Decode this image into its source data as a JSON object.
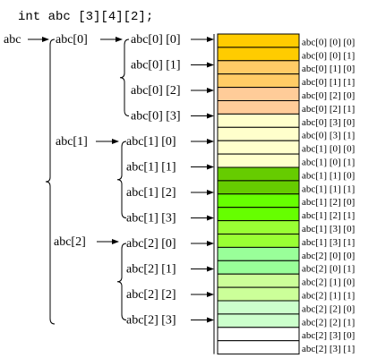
{
  "declaration": "int abc [3][4][2];",
  "root_label": "abc",
  "first_level": [
    "abc[0]",
    "abc[1]",
    "abc[2]"
  ],
  "second_level": [
    [
      "abc[0] [0]",
      "abc[0] [1]",
      "abc[0] [2]",
      "abc[0] [3]"
    ],
    [
      "abc[1] [0]",
      "abc[1] [1]",
      "abc[1] [2]",
      "abc[1] [3]"
    ],
    [
      "abc[2] [0]",
      "abc[2] [1]",
      "abc[2] [2]",
      "abc[2] [3]"
    ]
  ],
  "elements": [
    {
      "label": "abc[0] [0] [0]",
      "color": "#FFCC00"
    },
    {
      "label": "abc[0] [0] [1]",
      "color": "#FFCC00"
    },
    {
      "label": "abc[0] [1] [0]",
      "color": "#FFCC66"
    },
    {
      "label": "abc[0] [1] [1]",
      "color": "#FFCC66"
    },
    {
      "label": "abc[0] [2] [0]",
      "color": "#FFCC99"
    },
    {
      "label": "abc[0] [2] [1]",
      "color": "#FFCC99"
    },
    {
      "label": "abc[0] [3] [0]",
      "color": "#FFFFCC"
    },
    {
      "label": "abc[0] [3] [1]",
      "color": "#FFFFCC"
    },
    {
      "label": "abc[1] [0] [0]",
      "color": "#FFFFCC"
    },
    {
      "label": "abc[1] [0] [1]",
      "color": "#FFFFCC"
    },
    {
      "label": "abc[1] [1] [0]",
      "color": "#66CC00"
    },
    {
      "label": "abc[1] [1] [1]",
      "color": "#66CC00"
    },
    {
      "label": "abc[1] [2] [0]",
      "color": "#66FF00"
    },
    {
      "label": "abc[1] [2] [1]",
      "color": "#66FF00"
    },
    {
      "label": "abc[1] [3] [0]",
      "color": "#99FF33"
    },
    {
      "label": "abc[1] [3] [1]",
      "color": "#99FF33"
    },
    {
      "label": "abc[2] [0] [0]",
      "color": "#99FF99"
    },
    {
      "label": "abc[2] [0] [1]",
      "color": "#99FF99"
    },
    {
      "label": "abc[2] [1] [0]",
      "color": "#CCFF99"
    },
    {
      "label": "abc[2] [1] [1]",
      "color": "#CCFF99"
    },
    {
      "label": "abc[2] [2] [0]",
      "color": "#CCFFCC"
    },
    {
      "label": "abc[2] [2] [1]",
      "color": "#CCFFCC"
    },
    {
      "label": "abc[2] [3] [0]",
      "color": "#FFFFFF"
    },
    {
      "label": "abc[2] [3] [1]",
      "color": "#FFFFFF"
    }
  ]
}
